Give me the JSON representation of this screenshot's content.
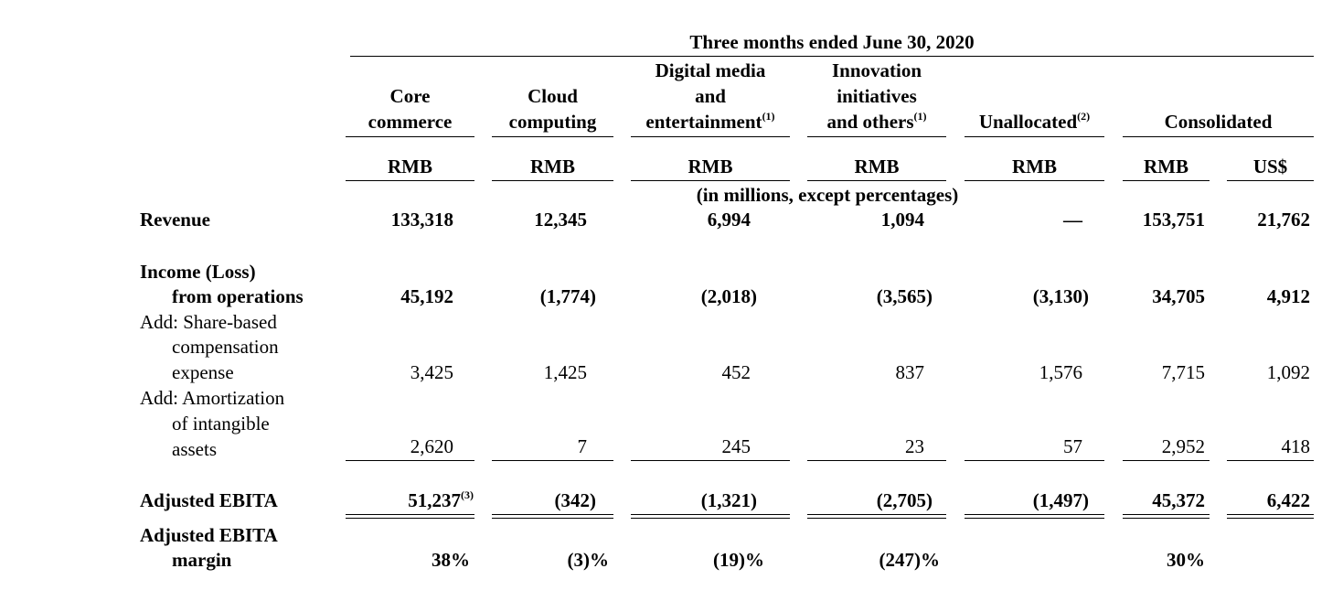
{
  "title": "Three months ended June 30, 2020",
  "segments": {
    "core": [
      "Core",
      "commerce"
    ],
    "cloud": [
      "Cloud",
      "computing"
    ],
    "digital": [
      "Digital media",
      "and",
      "entertainment"
    ],
    "digital_sup": "(1)",
    "innovation": [
      "Innovation",
      "initiatives",
      "and others"
    ],
    "innovation_sup": "(1)",
    "unallocated": "Unallocated",
    "unallocated_sup": "(2)",
    "consolidated": "Consolidated"
  },
  "currencies": [
    "RMB",
    "RMB",
    "RMB",
    "RMB",
    "RMB",
    "RMB",
    "US$"
  ],
  "units_note": "(in millions, except percentages)",
  "rows": {
    "revenue": {
      "label": "Revenue",
      "values": [
        "133,318",
        "12,345",
        "6,994",
        "1,094",
        "—",
        "153,751",
        "21,762"
      ]
    },
    "income": {
      "label_line1": "Income (Loss)",
      "label_line2": "from operations",
      "values": [
        "45,192",
        "(1,774)",
        "(2,018)",
        "(3,565)",
        "(3,130)",
        "34,705",
        "4,912"
      ]
    },
    "sbc": {
      "label_line1": "Add: Share-based",
      "label_line2": "compensation",
      "label_line3": "expense",
      "values": [
        "3,425",
        "1,425",
        "452",
        "837",
        "1,576",
        "7,715",
        "1,092"
      ]
    },
    "amort": {
      "label_line1": "Add: Amortization",
      "label_line2": "of intangible",
      "label_line3": "assets",
      "values": [
        "2,620",
        "7",
        "245",
        "23",
        "57",
        "2,952",
        "418"
      ]
    },
    "ebita": {
      "label": "Adjusted EBITA",
      "core_sup": "(3)",
      "values": [
        "51,237",
        "(342)",
        "(1,321)",
        "(2,705)",
        "(1,497)",
        "45,372",
        "6,422"
      ]
    },
    "margin": {
      "label_line1": "Adjusted EBITA",
      "label_line2": "margin",
      "values": [
        "38%",
        "(3)%",
        "(19)%",
        "(247)%",
        "",
        "30%",
        ""
      ]
    }
  }
}
